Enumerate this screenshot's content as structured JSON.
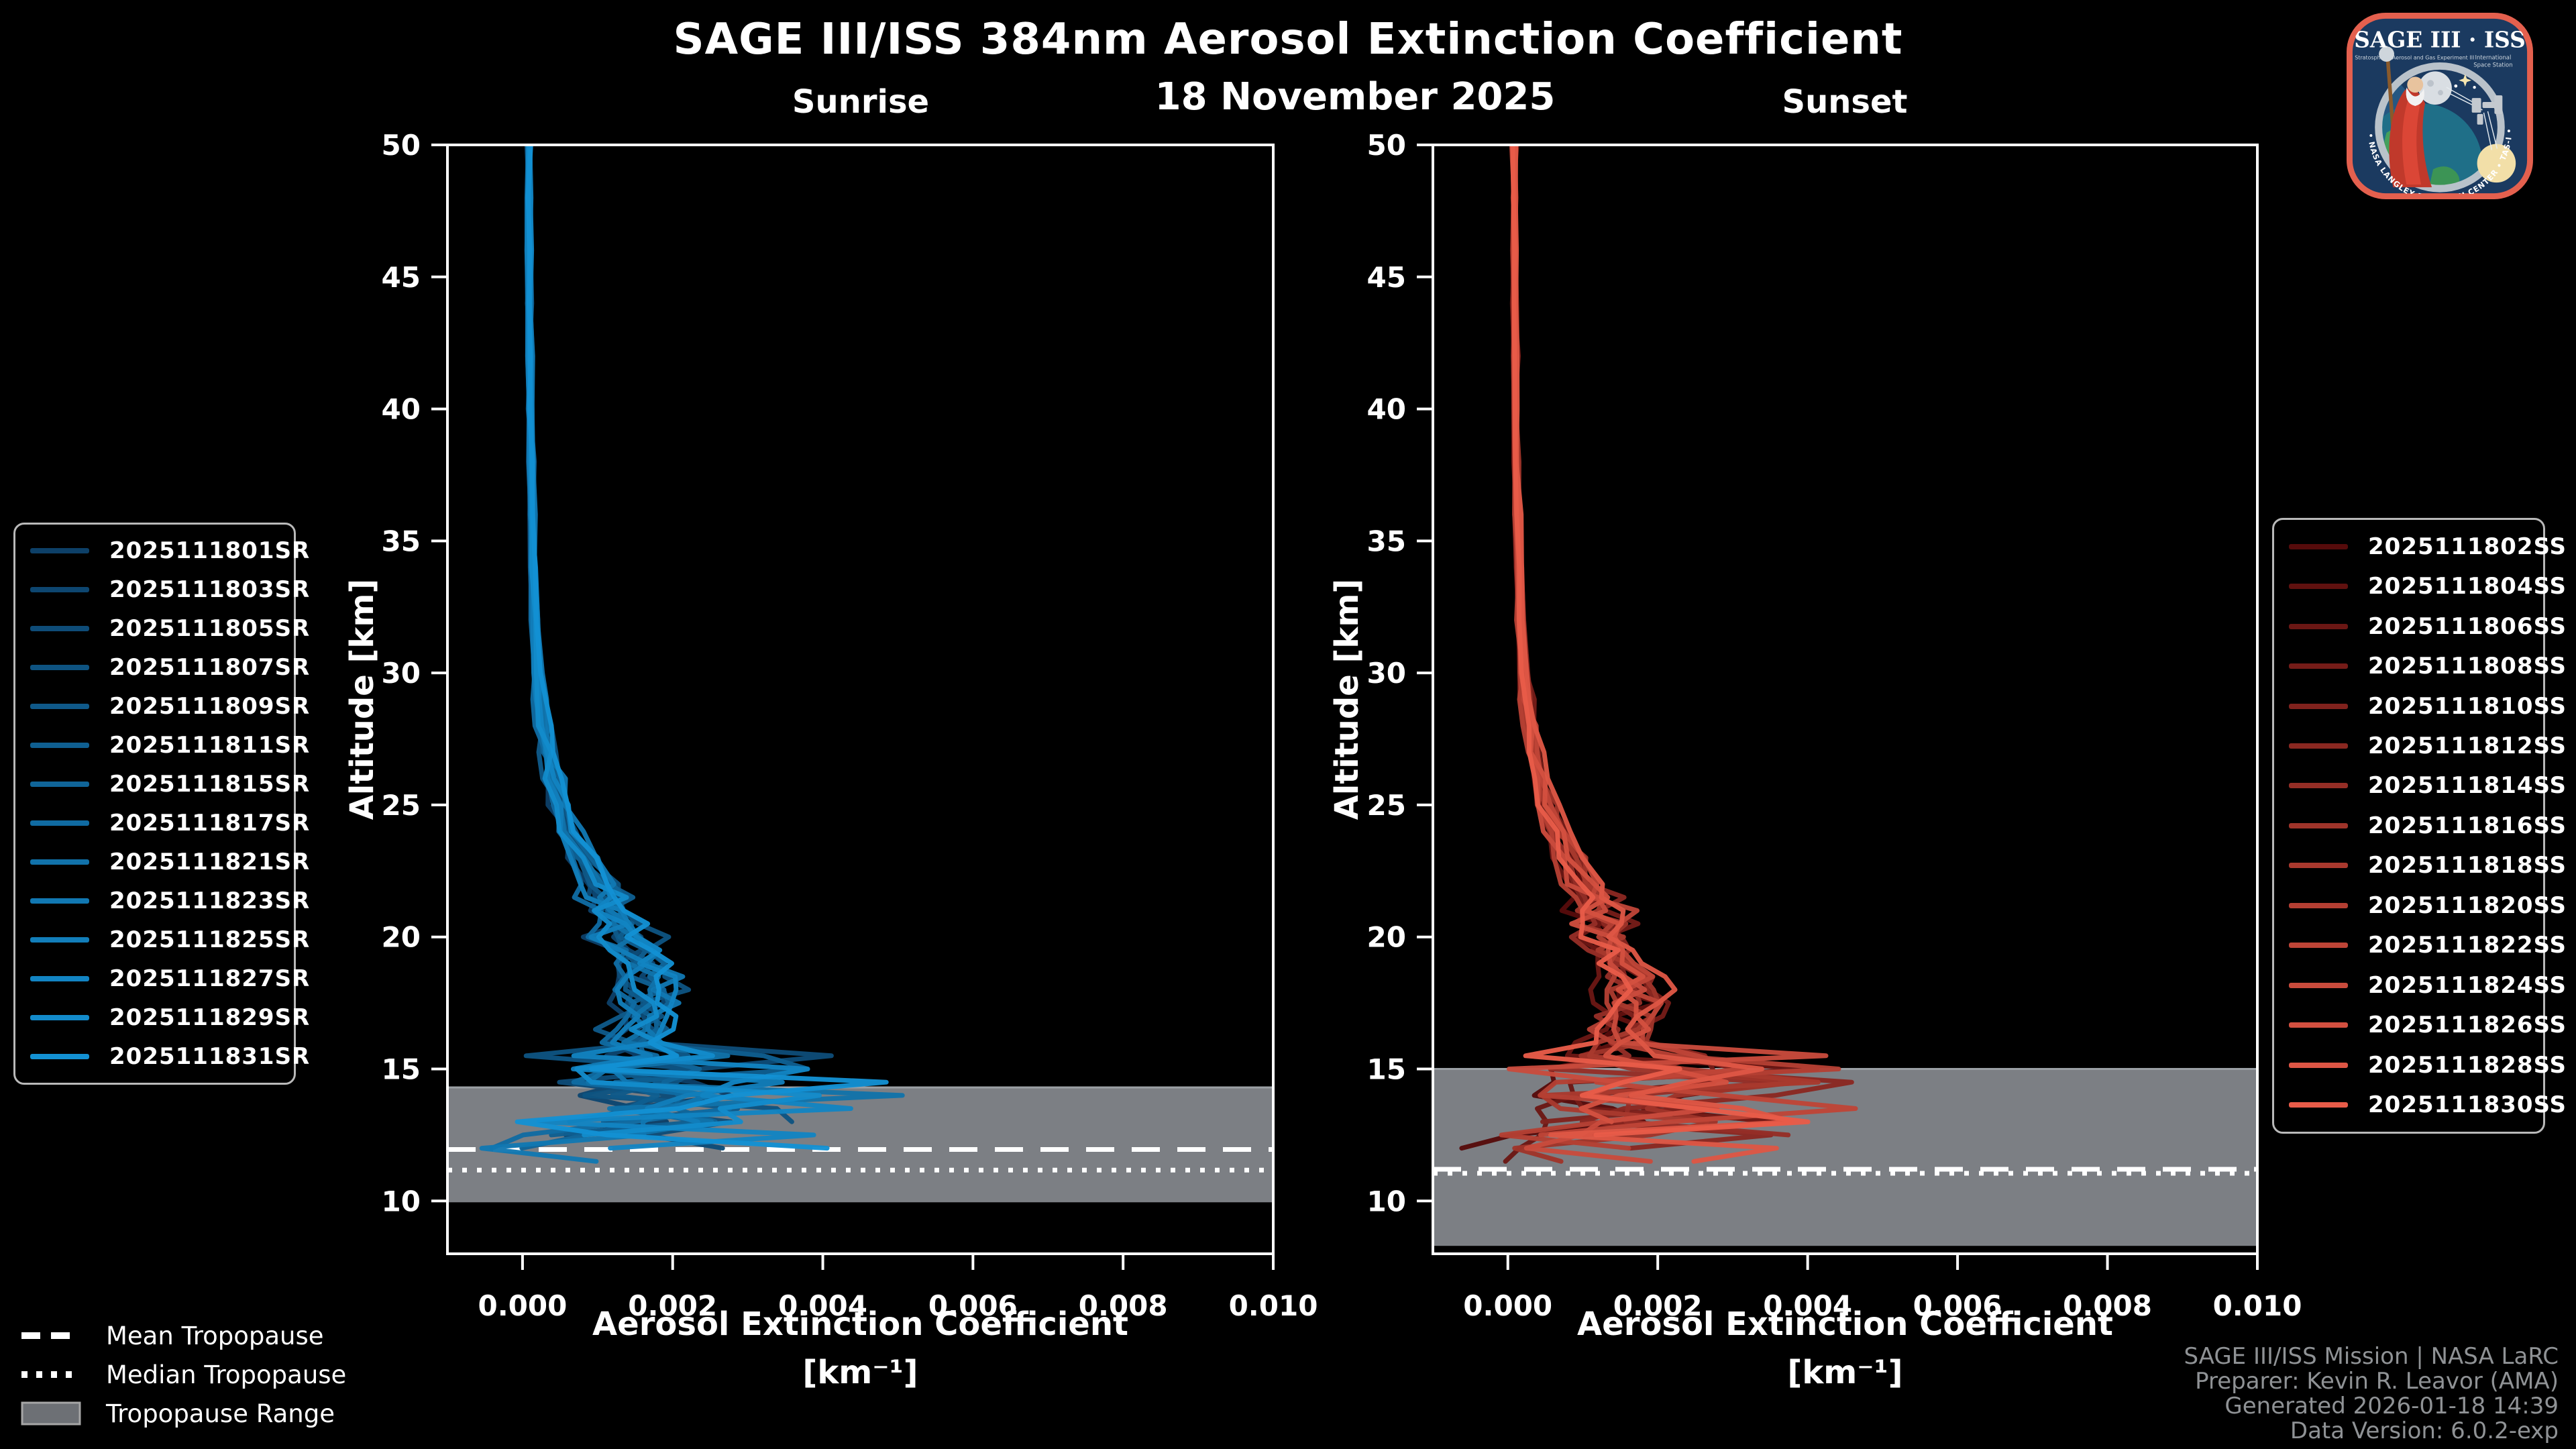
{
  "header": {
    "title": "SAGE III/ISS 384nm Aerosol Extinction Coefficient",
    "date": "18 November 2025",
    "sunrise_label": "Sunrise",
    "sunset_label": "Sunset"
  },
  "footer": {
    "lines": [
      "SAGE III/ISS Mission | NASA LaRC",
      "Preparer: Kevin R. Leavor (AMA)",
      "Generated 2026-01-18 14:39",
      "Data Version: 6.0.2-exp"
    ]
  },
  "logo": {
    "title": "SAGE III · ISS",
    "subtitle": "Stratospheric Aerosol and Gas Experiment III",
    "intl_line1": "International",
    "intl_line2": "Space Station",
    "arc_text": "BALL • NASA LANGLEY RESEARCH CENTER • TAS-I • ESA",
    "border_color": "#e4604e",
    "background_color": "#1b3a60"
  },
  "legend_tropopause": {
    "items": [
      {
        "label": "Mean Tropopause",
        "style": "dashed-line"
      },
      {
        "label": "Median Tropopause",
        "style": "dotted-line"
      },
      {
        "label": "Tropopause Range",
        "style": "gray-patch"
      }
    ],
    "line_color": "#ffffff",
    "patch_fill": "#6d7075",
    "patch_border": "#a6a6a6"
  },
  "chart_data": [
    {
      "type": "line",
      "title": "Sunrise",
      "xlabel_line1": "Aerosol Extinction Coefficient",
      "xlabel_line2": "[km⁻¹]",
      "ylabel": "Altitude [km]",
      "xlim": [
        -0.001,
        0.01
      ],
      "ylim": [
        8,
        50
      ],
      "xticks": [
        0.0,
        0.002,
        0.004,
        0.006,
        0.008,
        0.01
      ],
      "xtick_labels": [
        "0.000",
        "0.002",
        "0.004",
        "0.006",
        "0.008",
        "0.010"
      ],
      "yticks": [
        50,
        45,
        40,
        35,
        30,
        25,
        20,
        15,
        10
      ],
      "ytick_labels": [
        "50",
        "45",
        "40",
        "35",
        "30",
        "25",
        "20",
        "15",
        "10"
      ],
      "grid": false,
      "legend_position": "outside-left",
      "tropopause": {
        "mean_km": 11.95,
        "median_km": 11.17,
        "range_km": [
          9.95,
          14.3
        ]
      },
      "band_fill": "#7c7f84",
      "band_edge": "#9ba0a5",
      "spike_amp": 0.003,
      "base_profile": {
        "altitudes": [
          50,
          48,
          46,
          44,
          42,
          40,
          38,
          36,
          34,
          32,
          30,
          29,
          28,
          27,
          26,
          25,
          24,
          23,
          22,
          21.5,
          21,
          20.5,
          20,
          19.5,
          19,
          18.5,
          18,
          17.5,
          17,
          16.5,
          16,
          15.5,
          15,
          14.5,
          14,
          13.5,
          13,
          12.5,
          12,
          11.5,
          11
        ],
        "values": [
          8e-05,
          8e-05,
          9e-05,
          9e-05,
          0.0001,
          0.0001,
          0.00011,
          0.00012,
          0.00014,
          0.00017,
          0.0002,
          0.00023,
          0.00027,
          0.00032,
          0.0004,
          0.0005,
          0.00062,
          0.0008,
          0.001,
          0.0011,
          0.0012,
          0.00125,
          0.0013,
          0.0014,
          0.0015,
          0.0016,
          0.00165,
          0.0016,
          0.00155,
          0.0015,
          0.00145,
          0.0015,
          0.00155,
          0.0016,
          0.00165,
          0.0016,
          0.0014,
          0.0011,
          0.0008,
          0.0005,
          0.0003
        ]
      },
      "series": [
        {
          "label": "2025111801SR",
          "color": "#0d4068",
          "seed": 11,
          "scale": 0.85,
          "end_alt": 12.4
        },
        {
          "label": "2025111803SR",
          "color": "#0d4670",
          "seed": 22,
          "scale": 1.1,
          "end_alt": 12.8
        },
        {
          "label": "2025111805SR",
          "color": "#0e4c78",
          "seed": 33,
          "scale": 0.95,
          "end_alt": 11.9
        },
        {
          "label": "2025111807SR",
          "color": "#0e5381",
          "seed": 44,
          "scale": 1.2,
          "end_alt": 12.6
        },
        {
          "label": "2025111809SR",
          "color": "#0f5989",
          "seed": 55,
          "scale": 0.9,
          "end_alt": 13.0
        },
        {
          "label": "2025111811SR",
          "color": "#0f5f91",
          "seed": 66,
          "scale": 1.05,
          "end_alt": 12.2
        },
        {
          "label": "2025111815SR",
          "color": "#106599",
          "seed": 77,
          "scale": 1.15,
          "end_alt": 11.6
        },
        {
          "label": "2025111817SR",
          "color": "#106ba2",
          "seed": 88,
          "scale": 0.8,
          "end_alt": 12.0
        },
        {
          "label": "2025111821SR",
          "color": "#1172aa",
          "seed": 99,
          "scale": 1.0,
          "end_alt": 12.5
        },
        {
          "label": "2025111823SR",
          "color": "#1178b2",
          "seed": 110,
          "scale": 1.22,
          "end_alt": 11.5
        },
        {
          "label": "2025111825SR",
          "color": "#127eba",
          "seed": 121,
          "scale": 0.88,
          "end_alt": 12.9
        },
        {
          "label": "2025111827SR",
          "color": "#1284c3",
          "seed": 132,
          "scale": 1.12,
          "end_alt": 11.8
        },
        {
          "label": "2025111829SR",
          "color": "#138bcb",
          "seed": 143,
          "scale": 0.97,
          "end_alt": 12.3
        },
        {
          "label": "2025111831SR",
          "color": "#1391d3",
          "seed": 154,
          "scale": 1.18,
          "end_alt": 11.6
        }
      ]
    },
    {
      "type": "line",
      "title": "Sunset",
      "xlabel_line1": "Aerosol Extinction Coefficient",
      "xlabel_line2": "[km⁻¹]",
      "ylabel": "Altitude [km]",
      "xlim": [
        -0.001,
        0.01
      ],
      "ylim": [
        8,
        50
      ],
      "xticks": [
        0.0,
        0.002,
        0.004,
        0.006,
        0.008,
        0.01
      ],
      "xtick_labels": [
        "0.000",
        "0.002",
        "0.004",
        "0.006",
        "0.008",
        "0.010"
      ],
      "yticks": [
        50,
        45,
        40,
        35,
        30,
        25,
        20,
        15,
        10
      ],
      "ytick_labels": [
        "50",
        "45",
        "40",
        "35",
        "30",
        "25",
        "20",
        "15",
        "10"
      ],
      "grid": false,
      "legend_position": "outside-right",
      "tropopause": {
        "mean_km": 11.2,
        "median_km": 11.05,
        "range_km": [
          8.3,
          15.0
        ]
      },
      "band_fill": "#7c7f84",
      "band_edge": "#9ba0a5",
      "spike_amp": 0.0024,
      "base_profile": {
        "altitudes": [
          50,
          48,
          46,
          44,
          42,
          40,
          38,
          36,
          34,
          32,
          30,
          29,
          28,
          27,
          26,
          25,
          24,
          23,
          22,
          21.5,
          21,
          20.5,
          20,
          19.5,
          19,
          18.5,
          18,
          17.5,
          17,
          16.5,
          16,
          15.5,
          15,
          14.5,
          14,
          13.5,
          13,
          12.5,
          12,
          11.5,
          11
        ],
        "values": [
          8e-05,
          8e-05,
          9e-05,
          9e-05,
          0.0001,
          0.0001,
          0.00011,
          0.00012,
          0.00014,
          0.00017,
          0.0002,
          0.00023,
          0.00027,
          0.00032,
          0.0004,
          0.0005,
          0.00062,
          0.0008,
          0.001,
          0.0011,
          0.0012,
          0.00125,
          0.0013,
          0.0014,
          0.0015,
          0.0016,
          0.00165,
          0.0016,
          0.00155,
          0.0015,
          0.00145,
          0.0015,
          0.00155,
          0.0016,
          0.00165,
          0.0016,
          0.0014,
          0.0011,
          0.0008,
          0.0005,
          0.0003
        ]
      },
      "series": [
        {
          "label": "2025111802SS",
          "color": "#560b0b",
          "seed": 201,
          "scale": 0.9,
          "end_alt": 12.0
        },
        {
          "label": "2025111804SS",
          "color": "#60110f",
          "seed": 214,
          "scale": 1.05,
          "end_alt": 12.6
        },
        {
          "label": "2025111806SS",
          "color": "#6b1714",
          "seed": 227,
          "scale": 0.82,
          "end_alt": 11.4
        },
        {
          "label": "2025111808SS",
          "color": "#751c18",
          "seed": 240,
          "scale": 1.15,
          "end_alt": 12.2
        },
        {
          "label": "2025111810SS",
          "color": "#80221d",
          "seed": 253,
          "scale": 0.95,
          "end_alt": 12.9
        },
        {
          "label": "2025111812SS",
          "color": "#8a2821",
          "seed": 266,
          "scale": 1.2,
          "end_alt": 11.7
        },
        {
          "label": "2025111814SS",
          "color": "#952e26",
          "seed": 279,
          "scale": 0.88,
          "end_alt": 12.4
        },
        {
          "label": "2025111816SS",
          "color": "#9f342a",
          "seed": 292,
          "scale": 1.1,
          "end_alt": 11.2
        },
        {
          "label": "2025111818SS",
          "color": "#a9392e",
          "seed": 305,
          "scale": 1.0,
          "end_alt": 12.7
        },
        {
          "label": "2025111820SS",
          "color": "#b43f33",
          "seed": 318,
          "scale": 0.85,
          "end_alt": 11.9
        },
        {
          "label": "2025111822SS",
          "color": "#be4537",
          "seed": 331,
          "scale": 1.18,
          "end_alt": 12.1
        },
        {
          "label": "2025111824SS",
          "color": "#c94b3c",
          "seed": 344,
          "scale": 0.93,
          "end_alt": 11.5
        },
        {
          "label": "2025111826SS",
          "color": "#d35040",
          "seed": 357,
          "scale": 1.08,
          "end_alt": 12.8
        },
        {
          "label": "2025111828SS",
          "color": "#de5645",
          "seed": 370,
          "scale": 1.22,
          "end_alt": 11.3
        },
        {
          "label": "2025111830SS",
          "color": "#e85c49",
          "seed": 383,
          "scale": 0.9,
          "end_alt": 12.3
        }
      ]
    }
  ]
}
